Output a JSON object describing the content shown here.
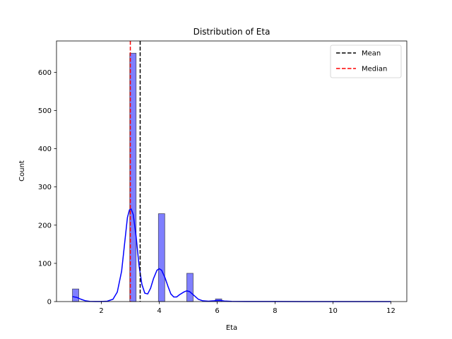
{
  "chart_data": {
    "type": "bar",
    "title": "Distribution of Eta",
    "xlabel": "Eta",
    "ylabel": "Count",
    "xlim": [
      0.45,
      12.55
    ],
    "ylim": [
      0,
      682
    ],
    "xticks": [
      2,
      4,
      6,
      8,
      10,
      12
    ],
    "yticks": [
      0,
      100,
      200,
      300,
      400,
      500,
      600
    ],
    "bar_color": "#0000ff",
    "bar_opacity": 0.5,
    "bin_width": 0.22,
    "bars": [
      {
        "x": 1.0,
        "count": 33
      },
      {
        "x": 2.98,
        "count": 650
      },
      {
        "x": 3.97,
        "count": 230
      },
      {
        "x": 4.95,
        "count": 74
      },
      {
        "x": 5.94,
        "count": 7
      }
    ],
    "kde": {
      "color": "#0000ff",
      "points": [
        [
          1.0,
          13
        ],
        [
          1.15,
          11
        ],
        [
          1.3,
          6
        ],
        [
          1.45,
          2
        ],
        [
          1.6,
          0.5
        ],
        [
          1.8,
          0.2
        ],
        [
          2.0,
          0.3
        ],
        [
          2.2,
          1
        ],
        [
          2.4,
          6
        ],
        [
          2.55,
          25
        ],
        [
          2.7,
          80
        ],
        [
          2.8,
          150
        ],
        [
          2.9,
          220
        ],
        [
          2.97,
          240
        ],
        [
          3.03,
          242
        ],
        [
          3.1,
          228
        ],
        [
          3.2,
          170
        ],
        [
          3.3,
          95
        ],
        [
          3.4,
          45
        ],
        [
          3.5,
          22
        ],
        [
          3.6,
          20
        ],
        [
          3.7,
          35
        ],
        [
          3.8,
          60
        ],
        [
          3.92,
          82
        ],
        [
          4.0,
          86
        ],
        [
          4.08,
          82
        ],
        [
          4.2,
          62
        ],
        [
          4.3,
          40
        ],
        [
          4.4,
          20
        ],
        [
          4.5,
          12
        ],
        [
          4.6,
          12
        ],
        [
          4.7,
          18
        ],
        [
          4.85,
          25
        ],
        [
          4.95,
          28
        ],
        [
          5.05,
          26
        ],
        [
          5.2,
          16
        ],
        [
          5.35,
          6
        ],
        [
          5.5,
          2
        ],
        [
          5.7,
          1
        ],
        [
          5.9,
          2
        ],
        [
          6.0,
          3
        ],
        [
          6.1,
          3
        ],
        [
          6.25,
          1.5
        ],
        [
          6.5,
          0.5
        ],
        [
          7.0,
          0.2
        ],
        [
          8.0,
          0.2
        ],
        [
          9.0,
          0.1
        ],
        [
          10.0,
          0.1
        ],
        [
          11.0,
          0.1
        ],
        [
          12.0,
          0.1
        ]
      ]
    },
    "vlines": [
      {
        "name": "Mean",
        "x": 3.34,
        "color": "#000000",
        "style": "dashed"
      },
      {
        "name": "Median",
        "x": 3.0,
        "color": "#ff0000",
        "style": "dashed"
      }
    ],
    "legend": {
      "position": "top-right",
      "entries": [
        {
          "label": "Mean",
          "color": "#000000"
        },
        {
          "label": "Median",
          "color": "#ff0000"
        }
      ]
    },
    "grid": false
  }
}
